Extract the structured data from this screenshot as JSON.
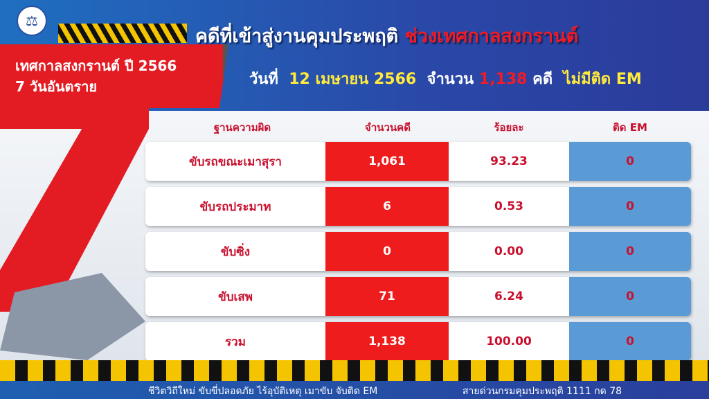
{
  "header": {
    "title_main": "คดีที่เข้าสู่งานคุมประพฤติ",
    "title_highlight": "ช่วงเทศกาลสงกรานต์",
    "festival": "เทศกาลสงกรานต์ ปี 2566",
    "period": "7 วันอันตราย",
    "date_label": "วันที่",
    "date": "12 เมษายน 2566",
    "count_label": "จำนวน",
    "count": "1,138",
    "case_unit": "คดี",
    "em_note": "ไม่มีติด EM"
  },
  "table": {
    "columns": [
      "ฐานความผิด",
      "จำนวนคดี",
      "ร้อยละ",
      "ติด EM"
    ],
    "rows": [
      {
        "offense": "ขับรถขณะเมาสุรา",
        "cases": "1,061",
        "percent": "93.23",
        "em": "0"
      },
      {
        "offense": "ขับรถประมาท",
        "cases": "6",
        "percent": "0.53",
        "em": "0"
      },
      {
        "offense": "ขับซิ่ง",
        "cases": "0",
        "percent": "0.00",
        "em": "0"
      },
      {
        "offense": "ขับเสพ",
        "cases": "71",
        "percent": "6.24",
        "em": "0"
      },
      {
        "offense": "รวม",
        "cases": "1,138",
        "percent": "100.00",
        "em": "0"
      }
    ]
  },
  "footer": {
    "slogan": "ชีวิตวิถีใหม่ ขับขี่ปลอดภัย ไร้อุบัติเหตุ เมาขับ จับติด EM",
    "hotline": "สายด่วนกรมคุมประพฤติ 1111 กด 78"
  },
  "colors": {
    "red": "#ee1c1c",
    "blue": "#5b9bd5",
    "header_blue": "#2a48a8",
    "yellow": "#f5c400"
  }
}
